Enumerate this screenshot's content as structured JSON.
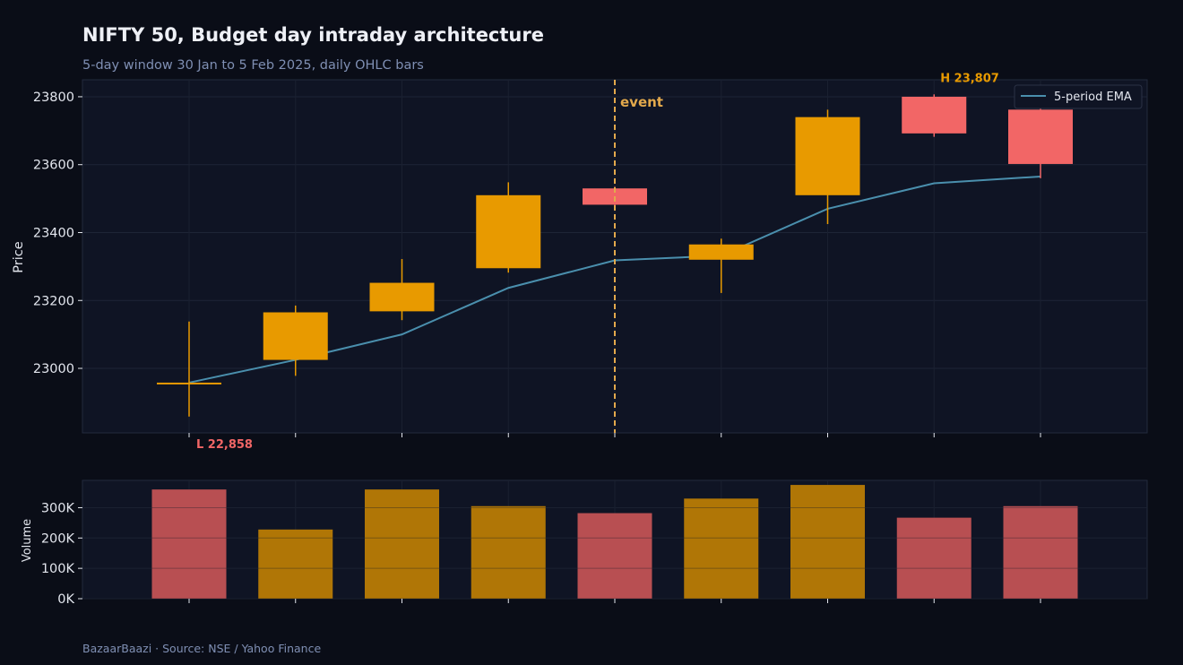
{
  "chart_data": [
    {
      "type": "candlestick",
      "title": "NIFTY 50, Budget day intraday architecture",
      "subtitle": "5-day window 30 Jan to 5 Feb 2025, daily OHLC bars",
      "ylabel": "Price",
      "ylim": [
        22810,
        23850
      ],
      "yticks": [
        23000,
        23200,
        23400,
        23600,
        23800
      ],
      "grid": true,
      "colors": {
        "up": "#e89a00",
        "down": "#f26666",
        "ema": "#4a8fad",
        "event": "#e3a94c"
      },
      "bars": [
        {
          "open": 22958,
          "high": 23138,
          "low": 22858,
          "close": 22958
        },
        {
          "open": 23025,
          "high": 23185,
          "low": 22978,
          "close": 23165
        },
        {
          "open": 23168,
          "high": 23322,
          "low": 23142,
          "close": 23252
        },
        {
          "open": 23295,
          "high": 23548,
          "low": 23282,
          "close": 23510
        },
        {
          "open": 23530,
          "high": 23535,
          "low": 23480,
          "close": 23482
        },
        {
          "open": 23320,
          "high": 23382,
          "low": 23222,
          "close": 23365
        },
        {
          "open": 23510,
          "high": 23762,
          "low": 23425,
          "close": 23740
        },
        {
          "open": 23800,
          "high": 23807,
          "low": 23682,
          "close": 23692
        },
        {
          "open": 23762,
          "high": 23772,
          "low": 23560,
          "close": 23602
        }
      ],
      "series": [
        {
          "name": "5-period EMA",
          "values": [
            22958,
            23025,
            23100,
            23237,
            23318,
            23332,
            23470,
            23545,
            23565
          ]
        }
      ],
      "legend": {
        "position": "top-right"
      },
      "event_marker": {
        "index": 4,
        "label": "event"
      },
      "annotations": [
        {
          "index": 0,
          "value": 22858,
          "text": "L 22,858",
          "color": "#f26666"
        },
        {
          "index": 7,
          "value": 23807,
          "text": "H 23,807",
          "color": "#e89a00"
        }
      ]
    },
    {
      "type": "bar",
      "ylabel": "Volume",
      "ylim": [
        0,
        390000
      ],
      "yticks": [
        0,
        100000,
        200000,
        300000
      ],
      "ytick_labels": [
        "0K",
        "100K",
        "200K",
        "300K"
      ],
      "grid": true,
      "values": [
        360000,
        228000,
        360000,
        305000,
        282000,
        330000,
        375000,
        267000,
        305000
      ],
      "directions": [
        "down",
        "up",
        "up",
        "up",
        "down",
        "up",
        "up",
        "down",
        "down"
      ],
      "colors": {
        "up": "#b07606",
        "down": "#b84f52"
      }
    }
  ],
  "footer": "BazaarBaazi  ·  Source: NSE / Yahoo Finance"
}
